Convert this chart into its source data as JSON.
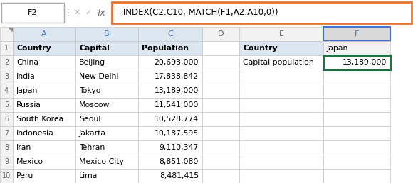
{
  "formula_bar_cell": "F2",
  "formula_bar_text": "=INDEX(C2:C10, MATCH(F1,A2:A10,0))",
  "col_headers": [
    "A",
    "B",
    "C",
    "D",
    "E",
    "F"
  ],
  "rows": [
    [
      "Country",
      "Capital",
      "Population",
      "",
      "Country",
      "Japan"
    ],
    [
      "China",
      "Beijing",
      "20,693,000",
      "",
      "Capital population",
      "13,189,000"
    ],
    [
      "India",
      "New Delhi",
      "17,838,842",
      "",
      "",
      ""
    ],
    [
      "Japan",
      "Tokyo",
      "13,189,000",
      "",
      "",
      ""
    ],
    [
      "Russia",
      "Moscow",
      "11,541,000",
      "",
      "",
      ""
    ],
    [
      "South Korea",
      "Seoul",
      "10,528,774",
      "",
      "",
      ""
    ],
    [
      "Indonesia",
      "Jakarta",
      "10,187,595",
      "",
      "",
      ""
    ],
    [
      "Iran",
      "Tehran",
      "9,110,347",
      "",
      "",
      ""
    ],
    [
      "Mexico",
      "Mexico City",
      "8,851,080",
      "",
      "",
      ""
    ],
    [
      "Peru",
      "Lima",
      "8,481,415",
      "",
      "",
      ""
    ]
  ],
  "header_bg": "#dce6f1",
  "header_fg": "#4472c4",
  "grid_color": "#c8c8c8",
  "row_hdr_bg": "#f2f2f2",
  "row_hdr_fg": "#666666",
  "col_hdr_bg_blue": "#dce6f1",
  "col_hdr_bg_grey": "#f2f2f2",
  "col_hdr_bg_selected": "#d9d9d9",
  "col_hdr_fg_blue": "#4472c4",
  "col_hdr_fg_grey": "#666666",
  "col_hdr_border_selected": "#4472c4",
  "formula_orange": "#e07535",
  "active_cell_green": "#217346",
  "f1_bg": "#f2f2f2",
  "white": "#ffffff"
}
